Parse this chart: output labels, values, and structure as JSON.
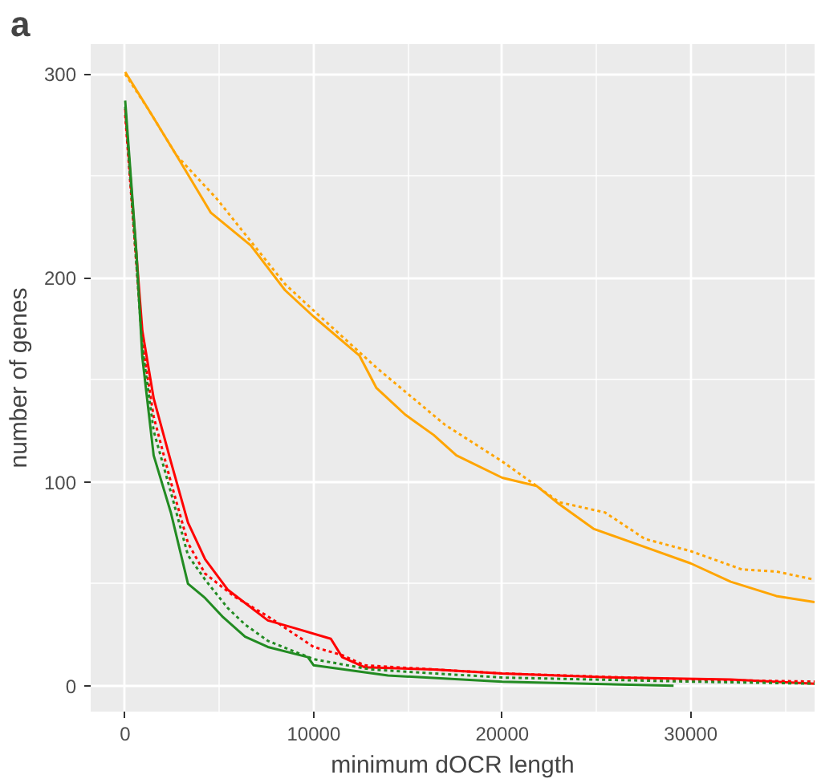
{
  "chart_data": {
    "type": "line",
    "xlabel": "minimum dOCR length",
    "ylabel": "number of genes",
    "annotations": [
      "a"
    ],
    "xlim": [
      -1830,
      36570
    ],
    "ylim": [
      -12.7,
      314.7
    ],
    "xticks": [
      0,
      10000,
      20000,
      30000
    ],
    "yticks": [
      0,
      100,
      200,
      300
    ],
    "grid": true,
    "marker": "none",
    "series": [
      {
        "color": "#ffa500",
        "line_style": "solid",
        "x": [
          0,
          1210,
          2730,
          4545,
          6660,
          8480,
          10000,
          12420,
          13330,
          14850,
          16360,
          17570,
          20000,
          21820,
          23030,
          24840,
          27270,
          30000,
          32120,
          34540,
          36570
        ],
        "values": [
          301,
          283,
          260,
          232,
          216,
          194,
          181,
          162,
          146,
          133,
          123,
          113,
          102,
          98,
          89,
          77,
          69,
          60,
          51,
          44,
          41
        ]
      },
      {
        "color": "#ffa500",
        "line_style": "dotted",
        "x": [
          0,
          1210,
          2730,
          4845,
          6660,
          8480,
          10000,
          13330,
          16960,
          20000,
          23030,
          25450,
          27570,
          30000,
          32720,
          34540,
          36570
        ],
        "values": [
          300,
          283,
          260,
          239,
          218,
          197,
          184,
          156,
          128,
          110,
          90,
          85,
          72,
          66,
          57,
          56,
          52
        ]
      },
      {
        "color": "#ff0000",
        "line_style": "solid",
        "x": [
          0,
          910,
          1510,
          2420,
          3330,
          4240,
          5450,
          7570,
          9090,
          10910,
          11510,
          12720,
          16360,
          20000,
          26060,
          32120,
          36570
        ],
        "values": [
          283,
          174,
          141,
          110,
          80,
          62,
          47,
          32,
          28,
          23,
          14,
          9,
          8,
          6,
          4,
          3,
          1
        ]
      },
      {
        "color": "#ff0000",
        "line_style": "dotted",
        "x": [
          0,
          910,
          1510,
          2420,
          3330,
          4240,
          5750,
          7570,
          10000,
          11510,
          12700,
          20000,
          30000,
          36570
        ],
        "values": [
          280,
          168,
          132,
          100,
          70,
          55,
          44,
          34,
          19,
          15,
          10,
          6,
          3,
          2
        ]
      },
      {
        "color": "#228b22",
        "line_style": "solid",
        "x": [
          0,
          600,
          910,
          1510,
          2420,
          3330,
          4240,
          5150,
          6360,
          7570,
          9690,
          10000,
          13940,
          20000,
          29090
        ],
        "values": [
          287,
          212,
          161,
          113,
          85,
          50,
          43,
          34,
          24,
          19,
          14,
          10,
          5,
          2,
          0
        ]
      },
      {
        "color": "#228b22",
        "line_style": "dotted",
        "x": [
          0,
          910,
          1510,
          2420,
          3330,
          4240,
          5450,
          6360,
          7570,
          10000,
          13000,
          20000,
          30000,
          36570
        ],
        "values": [
          284,
          166,
          125,
          95,
          64,
          52,
          38,
          30,
          22,
          13,
          8,
          4,
          2,
          1
        ]
      }
    ]
  }
}
